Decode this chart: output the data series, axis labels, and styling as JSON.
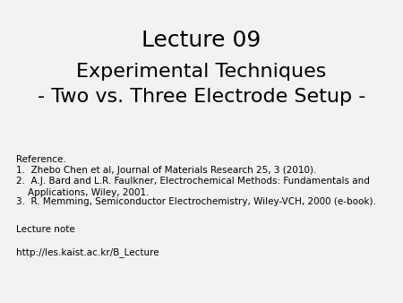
{
  "slide_background": "#f2f2f2",
  "title1": "Lecture 09",
  "title2": "Experimental Techniques\n- Two vs. Three Electrode Setup -",
  "reference_header": "Reference.",
  "ref1_num": "1.",
  "ref1_text": "  Zhebo Chen et al, Journal of Materials Research 25, 3 (2010).",
  "ref2_num": "2.",
  "ref2_text": "  A.J. Bard and L.R. Faulkner, Electrochemical Methods: Fundamentals and\n    Applications, Wiley, 2001.",
  "ref3_num": "3.",
  "ref3_text": "  R. Memming, Semiconductor Electrochemistry, Wiley-VCH, 2000 (e-book).",
  "lecture_note": "Lecture note",
  "url": "http://les.kaist.ac.kr/B_Lecture",
  "title1_fontsize": 18,
  "title2_fontsize": 16,
  "body_fontsize": 7.5,
  "text_color": "#000000"
}
